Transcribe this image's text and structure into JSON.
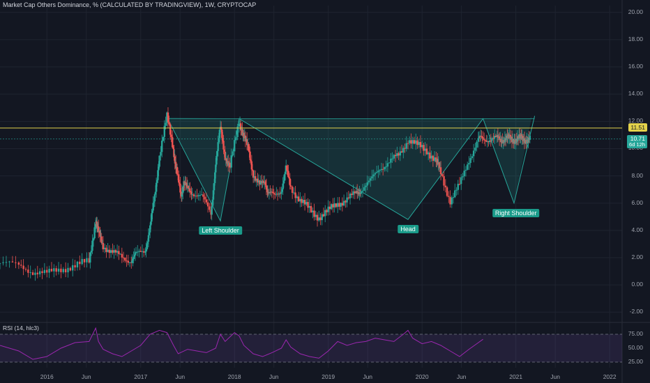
{
  "chart_data": [
    {
      "type": "candlestick",
      "title": "Market Cap Others Dominance, % (CALCULATED BY TRADINGVIEW), 1W, CRYPTOCAP",
      "x_ticks": [
        "2016",
        "Jun",
        "2017",
        "Jun",
        "2018",
        "Jun",
        "2019",
        "Jun",
        "2020",
        "Jun",
        "2021",
        "Jun",
        "2022"
      ],
      "y_ticks": [
        "20.00",
        "18.00",
        "16.00",
        "14.00",
        "12.00",
        "10.00",
        "8.00",
        "6.00",
        "4.00",
        "2.00",
        "0.00",
        "-2.00"
      ],
      "ylim": [
        -2.6,
        20.5
      ],
      "grid": true,
      "resistance_line": {
        "value": 11.51,
        "color": "#e3d24b"
      },
      "last_price": {
        "value": "10.71",
        "countdown": "6d 12h",
        "color": "#26a69a"
      },
      "series": [
        {
          "x": [
            2015.5,
            2015.7,
            2015.85,
            2016.0,
            2016.15,
            2016.3,
            2016.45,
            2016.52,
            2016.55,
            2016.6,
            2016.7,
            2016.8,
            2016.9,
            2016.95,
            2017.05,
            2017.1,
            2017.15,
            2017.2,
            2017.28,
            2017.35,
            2017.38,
            2017.43,
            2017.46,
            2017.5,
            2017.55,
            2017.65,
            2017.75,
            2017.8,
            2017.85,
            2017.9,
            2017.95,
            2018.05,
            2018.1,
            2018.15,
            2018.2,
            2018.27,
            2018.33,
            2018.36,
            2018.42,
            2018.5,
            2018.55,
            2018.6,
            2018.7,
            2018.8,
            2018.9,
            2019.0,
            2019.1,
            2019.2,
            2019.3,
            2019.35,
            2019.45,
            2019.55,
            2019.65,
            2019.75,
            2019.85,
            2019.95,
            2020.05,
            2020.15,
            2020.2,
            2020.3,
            2020.4,
            2020.5,
            2020.6,
            2020.65,
            2020.72,
            2020.8,
            2020.85,
            2020.9,
            2020.95,
            2021.0,
            2021.05,
            2021.1,
            2021.15
          ],
          "y": [
            1.6,
            1.4,
            1.0,
            0.8,
            1.2,
            1.4,
            1.7,
            4.8,
            3.8,
            2.9,
            2.4,
            2.0,
            1.8,
            2.2,
            2.6,
            4.2,
            6.5,
            9.5,
            12.3,
            10.0,
            8.4,
            6.5,
            7.6,
            7.0,
            6.8,
            6.5,
            5.2,
            9.0,
            11.5,
            9.5,
            8.6,
            12.0,
            11.0,
            9.8,
            8.2,
            7.3,
            7.5,
            6.8,
            6.5,
            7.0,
            8.5,
            7.2,
            6.2,
            5.5,
            5.0,
            5.4,
            6.0,
            6.3,
            6.7,
            7.0,
            7.6,
            8.6,
            9.0,
            9.5,
            10.7,
            10.2,
            9.9,
            9.1,
            8.2,
            6.2,
            7.3,
            9.2,
            10.71,
            10.71,
            10.71,
            10.71,
            10.71,
            10.71,
            10.71,
            10.71,
            10.71,
            10.71,
            10.71
          ]
        }
      ]
    },
    {
      "type": "line",
      "title": "RSI (14, hlc3)",
      "y_ticks": [
        "75.00",
        "50.00",
        "25.00"
      ],
      "ylim": [
        15,
        90
      ],
      "series": [
        {
          "x": [
            2015.5,
            2015.7,
            2015.85,
            2016.0,
            2016.15,
            2016.3,
            2016.45,
            2016.52,
            2016.55,
            2016.6,
            2016.7,
            2016.8,
            2016.9,
            2017.0,
            2017.1,
            2017.2,
            2017.28,
            2017.35,
            2017.4,
            2017.5,
            2017.6,
            2017.7,
            2017.8,
            2017.85,
            2017.9,
            2018.0,
            2018.05,
            2018.1,
            2018.2,
            2018.3,
            2018.4,
            2018.5,
            2018.55,
            2018.6,
            2018.7,
            2018.8,
            2018.9,
            2019.0,
            2019.1,
            2019.2,
            2019.3,
            2019.4,
            2019.5,
            2019.6,
            2019.7,
            2019.8,
            2019.85,
            2019.9,
            2020.0,
            2020.1,
            2020.2,
            2020.3,
            2020.4,
            2020.5,
            2020.6,
            2020.65
          ],
          "y": [
            55,
            45,
            30,
            35,
            50,
            60,
            62,
            86,
            62,
            48,
            40,
            35,
            45,
            55,
            75,
            82,
            78,
            55,
            40,
            48,
            45,
            42,
            50,
            75,
            62,
            78,
            72,
            55,
            40,
            35,
            42,
            50,
            65,
            52,
            40,
            35,
            32,
            45,
            62,
            55,
            60,
            62,
            68,
            65,
            62,
            75,
            82,
            68,
            58,
            62,
            55,
            45,
            35,
            48,
            60,
            66
          ]
        }
      ]
    }
  ],
  "annotations": {
    "left_shoulder": "Left Shoulder",
    "head": "Head",
    "right_shoulder": "Right Shoulder"
  }
}
